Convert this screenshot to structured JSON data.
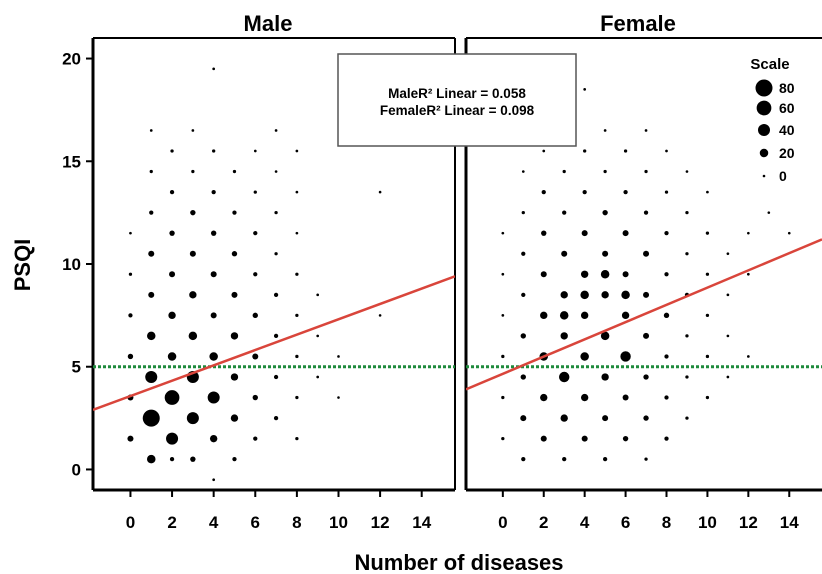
{
  "chart_data": {
    "type": "scatter",
    "xlabel": "Number of diseases",
    "ylabel": "PSQI",
    "xlim": [
      -1.8,
      15.6
    ],
    "ylim": [
      -1,
      21
    ],
    "xticks": [
      "0",
      "2",
      "4",
      "6",
      "8",
      "10",
      "12",
      "14"
    ],
    "yticks": [
      "0",
      "5",
      "10",
      "15",
      "20"
    ],
    "reference_line_y": 5,
    "colors": {
      "fit": "#d9453b",
      "reference": "#1e8a3c",
      "points": "#000000"
    },
    "fit_legend": [
      "MaleR² Linear = 0.058",
      "FemaleR² Linear = 0.098"
    ],
    "size_legend": {
      "title": "Scale",
      "entries": [
        {
          "label": "80",
          "value": 80
        },
        {
          "label": "60",
          "value": 60
        },
        {
          "label": "40",
          "value": 40
        },
        {
          "label": "20",
          "value": 20
        },
        {
          "label": "0",
          "value": 0
        }
      ]
    },
    "panels": [
      {
        "name": "Male",
        "fit_line": {
          "x": [
            -1.8,
            15.6
          ],
          "y": [
            2.9,
            9.4
          ]
        },
        "points": [
          [
            1,
            2.5,
            80
          ],
          [
            2,
            3.5,
            60
          ],
          [
            2,
            1.5,
            40
          ],
          [
            3,
            2.5,
            40
          ],
          [
            1,
            4.5,
            40
          ],
          [
            3,
            4.5,
            40
          ],
          [
            4,
            3.5,
            40
          ],
          [
            1,
            0.5,
            20
          ],
          [
            0,
            1.5,
            10
          ],
          [
            0,
            3.5,
            10
          ],
          [
            0,
            5.5,
            8
          ],
          [
            0,
            7.5,
            5
          ],
          [
            0,
            9.5,
            3
          ],
          [
            0,
            11.5,
            2
          ],
          [
            1,
            6.5,
            20
          ],
          [
            1,
            8.5,
            10
          ],
          [
            1,
            10.5,
            10
          ],
          [
            1,
            12.5,
            5
          ],
          [
            1,
            14.5,
            3
          ],
          [
            1,
            16.5,
            2
          ],
          [
            2,
            5.5,
            20
          ],
          [
            2,
            7.5,
            15
          ],
          [
            2,
            9.5,
            10
          ],
          [
            2,
            11.5,
            8
          ],
          [
            2,
            13.5,
            5
          ],
          [
            2,
            15.5,
            3
          ],
          [
            2,
            0.5,
            5
          ],
          [
            3,
            0.5,
            8
          ],
          [
            3,
            6.5,
            20
          ],
          [
            3,
            8.5,
            15
          ],
          [
            3,
            10.5,
            10
          ],
          [
            3,
            12.5,
            8
          ],
          [
            3,
            14.5,
            3
          ],
          [
            3,
            16.5,
            2
          ],
          [
            4,
            1.5,
            15
          ],
          [
            4,
            5.5,
            20
          ],
          [
            4,
            7.5,
            10
          ],
          [
            4,
            9.5,
            10
          ],
          [
            4,
            11.5,
            8
          ],
          [
            4,
            13.5,
            5
          ],
          [
            4,
            15.5,
            3
          ],
          [
            4,
            19.5,
            2
          ],
          [
            4,
            -0.5,
            2
          ],
          [
            5,
            0.5,
            5
          ],
          [
            5,
            2.5,
            15
          ],
          [
            5,
            4.5,
            15
          ],
          [
            5,
            6.5,
            15
          ],
          [
            5,
            8.5,
            10
          ],
          [
            5,
            10.5,
            8
          ],
          [
            5,
            12.5,
            5
          ],
          [
            5,
            14.5,
            3
          ],
          [
            6,
            1.5,
            5
          ],
          [
            6,
            3.5,
            8
          ],
          [
            6,
            5.5,
            10
          ],
          [
            6,
            7.5,
            8
          ],
          [
            6,
            9.5,
            5
          ],
          [
            6,
            11.5,
            5
          ],
          [
            6,
            13.5,
            3
          ],
          [
            6,
            15.5,
            2
          ],
          [
            7,
            2.5,
            5
          ],
          [
            7,
            4.5,
            5
          ],
          [
            7,
            6.5,
            5
          ],
          [
            7,
            8.5,
            5
          ],
          [
            7,
            10.5,
            3
          ],
          [
            7,
            12.5,
            3
          ],
          [
            7,
            14.5,
            2
          ],
          [
            7,
            16.5,
            2
          ],
          [
            8,
            1.5,
            3
          ],
          [
            8,
            3.5,
            3
          ],
          [
            8,
            5.5,
            3
          ],
          [
            8,
            7.5,
            3
          ],
          [
            8,
            9.5,
            3
          ],
          [
            8,
            11.5,
            2
          ],
          [
            8,
            13.5,
            2
          ],
          [
            8,
            15.5,
            2
          ],
          [
            9,
            4.5,
            2
          ],
          [
            9,
            6.5,
            2
          ],
          [
            9,
            8.5,
            2
          ],
          [
            10,
            3.5,
            1
          ],
          [
            10,
            5.5,
            1
          ],
          [
            12,
            7.5,
            1
          ],
          [
            12,
            13.5,
            1
          ]
        ]
      },
      {
        "name": "Female",
        "fit_line": {
          "x": [
            -1.8,
            15.6
          ],
          "y": [
            3.9,
            11.2
          ]
        },
        "points": [
          [
            3,
            4.5,
            30
          ],
          [
            6,
            5.5,
            30
          ],
          [
            2,
            5.5,
            20
          ],
          [
            3,
            7.5,
            20
          ],
          [
            4,
            5.5,
            20
          ],
          [
            4,
            8.5,
            20
          ],
          [
            5,
            6.5,
            20
          ],
          [
            5,
            9.5,
            20
          ],
          [
            6,
            8.5,
            20
          ],
          [
            0,
            1.5,
            3
          ],
          [
            0,
            3.5,
            3
          ],
          [
            0,
            5.5,
            3
          ],
          [
            0,
            7.5,
            2
          ],
          [
            0,
            9.5,
            2
          ],
          [
            0,
            11.5,
            2
          ],
          [
            1,
            0.5,
            5
          ],
          [
            1,
            2.5,
            10
          ],
          [
            1,
            4.5,
            8
          ],
          [
            1,
            6.5,
            8
          ],
          [
            1,
            8.5,
            5
          ],
          [
            1,
            10.5,
            5
          ],
          [
            1,
            12.5,
            3
          ],
          [
            1,
            14.5,
            2
          ],
          [
            1,
            16.5,
            2
          ],
          [
            2,
            1.5,
            10
          ],
          [
            2,
            3.5,
            15
          ],
          [
            2,
            7.5,
            15
          ],
          [
            2,
            9.5,
            10
          ],
          [
            2,
            11.5,
            8
          ],
          [
            2,
            13.5,
            5
          ],
          [
            2,
            15.5,
            2
          ],
          [
            3,
            0.5,
            5
          ],
          [
            3,
            2.5,
            15
          ],
          [
            3,
            6.5,
            15
          ],
          [
            3,
            8.5,
            15
          ],
          [
            3,
            10.5,
            10
          ],
          [
            3,
            12.5,
            5
          ],
          [
            3,
            14.5,
            3
          ],
          [
            3,
            16.5,
            2
          ],
          [
            4,
            1.5,
            10
          ],
          [
            4,
            3.5,
            15
          ],
          [
            4,
            7.5,
            15
          ],
          [
            4,
            9.5,
            15
          ],
          [
            4,
            11.5,
            10
          ],
          [
            4,
            13.5,
            5
          ],
          [
            4,
            15.5,
            3
          ],
          [
            4,
            18.5,
            2
          ],
          [
            5,
            0.5,
            5
          ],
          [
            5,
            2.5,
            10
          ],
          [
            5,
            4.5,
            15
          ],
          [
            5,
            8.5,
            15
          ],
          [
            5,
            10.5,
            10
          ],
          [
            5,
            12.5,
            8
          ],
          [
            5,
            14.5,
            3
          ],
          [
            5,
            16.5,
            2
          ],
          [
            6,
            1.5,
            8
          ],
          [
            6,
            3.5,
            10
          ],
          [
            6,
            7.5,
            15
          ],
          [
            6,
            9.5,
            10
          ],
          [
            6,
            11.5,
            10
          ],
          [
            6,
            13.5,
            5
          ],
          [
            6,
            15.5,
            3
          ],
          [
            7,
            0.5,
            3
          ],
          [
            7,
            2.5,
            8
          ],
          [
            7,
            4.5,
            8
          ],
          [
            7,
            6.5,
            10
          ],
          [
            7,
            8.5,
            10
          ],
          [
            7,
            10.5,
            10
          ],
          [
            7,
            12.5,
            5
          ],
          [
            7,
            14.5,
            3
          ],
          [
            7,
            16.5,
            2
          ],
          [
            8,
            1.5,
            5
          ],
          [
            8,
            3.5,
            5
          ],
          [
            8,
            5.5,
            5
          ],
          [
            8,
            7.5,
            8
          ],
          [
            8,
            9.5,
            5
          ],
          [
            8,
            11.5,
            5
          ],
          [
            8,
            13.5,
            3
          ],
          [
            8,
            15.5,
            2
          ],
          [
            9,
            2.5,
            3
          ],
          [
            9,
            4.5,
            3
          ],
          [
            9,
            6.5,
            3
          ],
          [
            9,
            8.5,
            5
          ],
          [
            9,
            10.5,
            3
          ],
          [
            9,
            12.5,
            3
          ],
          [
            9,
            14.5,
            2
          ],
          [
            10,
            3.5,
            3
          ],
          [
            10,
            5.5,
            3
          ],
          [
            10,
            7.5,
            3
          ],
          [
            10,
            9.5,
            3
          ],
          [
            10,
            11.5,
            3
          ],
          [
            10,
            13.5,
            2
          ],
          [
            11,
            4.5,
            2
          ],
          [
            11,
            6.5,
            2
          ],
          [
            11,
            8.5,
            2
          ],
          [
            11,
            10.5,
            2
          ],
          [
            12,
            5.5,
            2
          ],
          [
            12,
            9.5,
            2
          ],
          [
            12,
            11.5,
            1
          ],
          [
            13,
            12.5,
            1
          ],
          [
            14,
            11.5,
            1
          ]
        ]
      }
    ]
  }
}
